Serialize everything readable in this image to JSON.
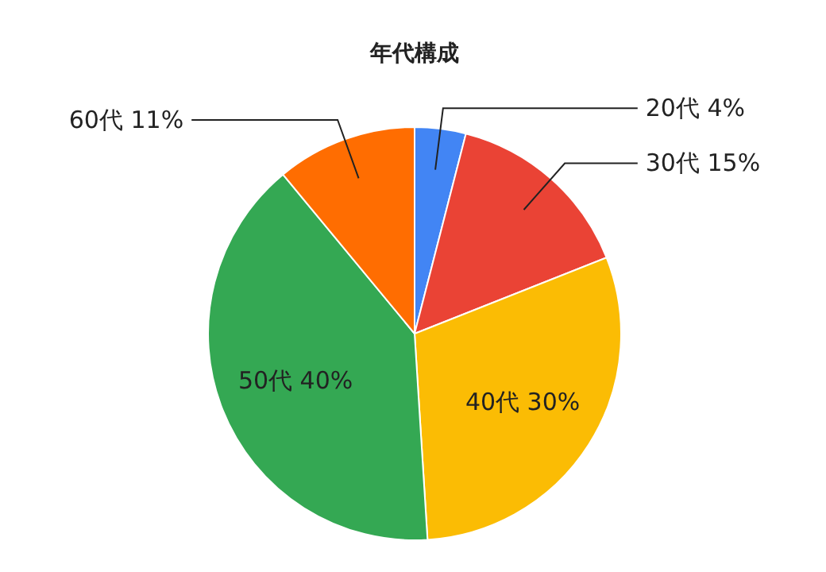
{
  "chart_data": {
    "type": "pie",
    "title": "年代構成",
    "categories": [
      "20代",
      "30代",
      "40代",
      "50代",
      "60代"
    ],
    "values": [
      4,
      15,
      30,
      40,
      11
    ],
    "colors": [
      "#4285f4",
      "#ea4335",
      "#fbbc04",
      "#34a853",
      "#ff6d01"
    ],
    "value_labels": [
      "4%",
      "15%",
      "30%",
      "40%",
      "11%"
    ]
  }
}
